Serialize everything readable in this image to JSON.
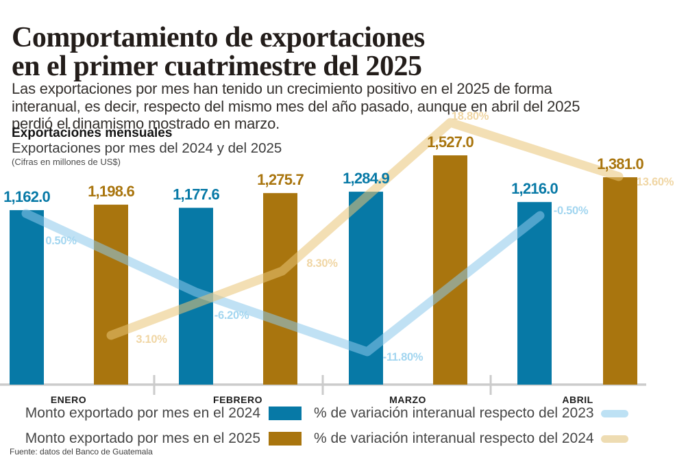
{
  "header": {
    "title_line1": "Comportamiento de exportaciones",
    "title_line2": "en el primer cuatrimestre del 2025",
    "intro": "Las exportaciones por mes han tenido un crecimiento positivo en el 2025 de forma interanual, es decir, respecto del mismo mes del año pasado, aunque en abril del 2025 perdió el dinamismo mostrado en marzo."
  },
  "chart_header": {
    "kicker": "Exportaciones mensuales",
    "subtitle": "Exportaciones por mes del 2024 y del 2025",
    "units_note": "(Cifras en millones de US$)"
  },
  "chart_data": {
    "type": "bar",
    "categories": [
      "ENERO",
      "FEBRERO",
      "MARZO",
      "ABRIL"
    ],
    "units": "millones de US$",
    "baseline_value": 0,
    "max_bar_value": 1527.0,
    "grid": false,
    "legend_position": "bottom",
    "series": [
      {
        "name": "Monto exportado por mes en el 2024",
        "type": "bar",
        "color": "#0779a6",
        "values": [
          1162.0,
          1177.6,
          1284.9,
          1216.0
        ],
        "labels": [
          "1,162.0",
          "1,177.6",
          "1,284.9",
          "1,216.0"
        ]
      },
      {
        "name": "Monto exportado por mes en el 2025",
        "type": "bar",
        "color": "#a9750e",
        "values": [
          1198.6,
          1275.7,
          1527.0,
          1381.0
        ],
        "labels": [
          "1,198.6",
          "1,275.7",
          "1,527.0",
          "1,381.0"
        ]
      },
      {
        "name": "% de variación interanual respecto del 2023",
        "type": "line",
        "color": "#a3d6f0",
        "swatch_color": "#bde1f4",
        "values": [
          0.5,
          -6.2,
          -11.8,
          -0.5
        ],
        "labels": [
          "0.50%",
          "-6.20%",
          "-11.80%",
          "-0.50%"
        ]
      },
      {
        "name": "% de variación interanual respecto del 2024",
        "type": "line",
        "color": "#f0d6a4",
        "swatch_color": "#eedcb2",
        "values": [
          3.1,
          8.3,
          18.8,
          13.6
        ],
        "labels": [
          "3.10%",
          "8.30%",
          "18.80%",
          "13.60%"
        ]
      }
    ]
  },
  "source": "Fuente: datos del Banco de Guatemala"
}
